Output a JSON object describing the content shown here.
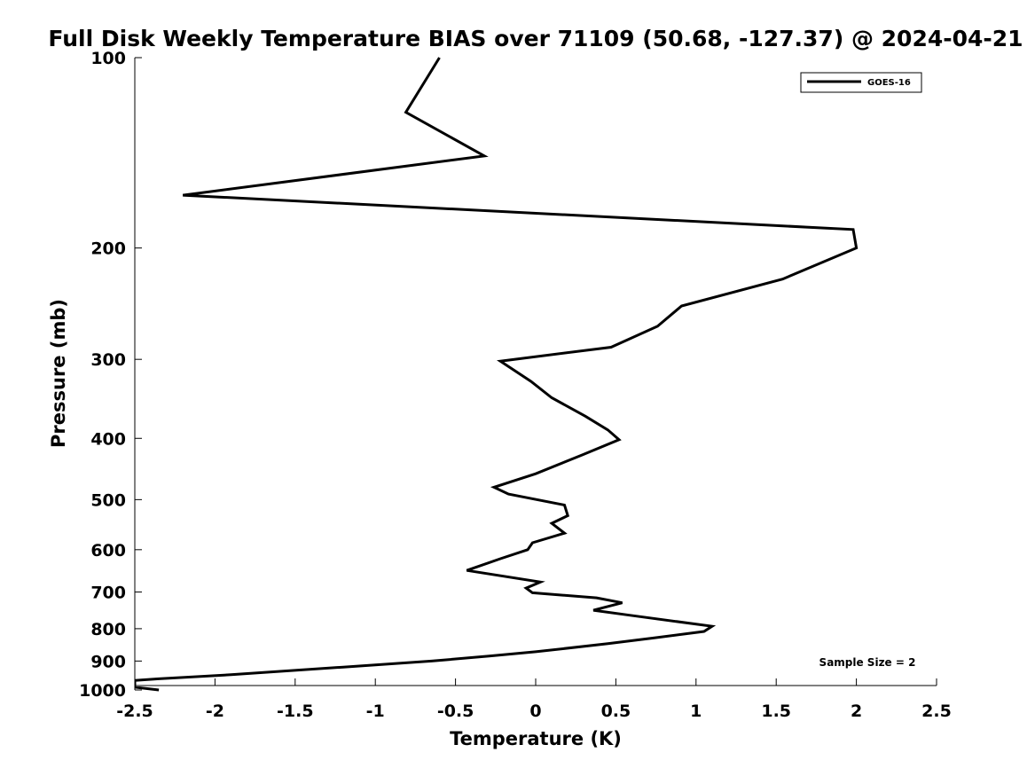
{
  "chart_data": {
    "type": "line",
    "title": "Full Disk Weekly Temperature BIAS over 71109 (50.68, -127.37) @ 2024-04-21",
    "xlabel": "Temperature (K)",
    "ylabel": "Pressure (mb)",
    "xlim": [
      -2.5,
      2.5
    ],
    "ylim": [
      1000,
      100
    ],
    "y_scale": "log",
    "x_ticks": [
      -2.5,
      -2,
      -1.5,
      -1,
      -0.5,
      0,
      0.5,
      1,
      1.5,
      2,
      2.5
    ],
    "x_tick_labels": [
      "-2.5",
      "-2",
      "-1.5",
      "-1",
      "-0.5",
      "0",
      "0.5",
      "1",
      "1.5",
      "2",
      "2.5"
    ],
    "y_ticks": [
      100,
      200,
      300,
      400,
      500,
      600,
      700,
      800,
      900,
      1000
    ],
    "y_tick_labels": [
      "100",
      "200",
      "300",
      "400",
      "500",
      "600",
      "700",
      "800",
      "900",
      "1000"
    ],
    "grid": false,
    "legend_position": "top-right",
    "annotation": "Sample Size = 2",
    "series": [
      {
        "name": "GOES-16",
        "color": "#000000",
        "points": [
          {
            "x": -0.6,
            "p": 100
          },
          {
            "x": -0.81,
            "p": 122
          },
          {
            "x": -0.32,
            "p": 143
          },
          {
            "x": -2.2,
            "p": 165
          },
          {
            "x": 1.98,
            "p": 187
          },
          {
            "x": 2.0,
            "p": 200
          },
          {
            "x": 1.54,
            "p": 224
          },
          {
            "x": 0.91,
            "p": 247
          },
          {
            "x": 0.76,
            "p": 266
          },
          {
            "x": 0.47,
            "p": 287
          },
          {
            "x": -0.22,
            "p": 302
          },
          {
            "x": -0.03,
            "p": 325
          },
          {
            "x": 0.1,
            "p": 345
          },
          {
            "x": 0.31,
            "p": 369
          },
          {
            "x": 0.45,
            "p": 388
          },
          {
            "x": 0.52,
            "p": 402
          },
          {
            "x": 0.29,
            "p": 425
          },
          {
            "x": 0.0,
            "p": 455
          },
          {
            "x": -0.26,
            "p": 478
          },
          {
            "x": -0.17,
            "p": 490
          },
          {
            "x": 0.18,
            "p": 510
          },
          {
            "x": 0.2,
            "p": 530
          },
          {
            "x": 0.1,
            "p": 545
          },
          {
            "x": 0.18,
            "p": 565
          },
          {
            "x": -0.02,
            "p": 585
          },
          {
            "x": -0.05,
            "p": 600
          },
          {
            "x": -0.22,
            "p": 620
          },
          {
            "x": -0.43,
            "p": 647
          },
          {
            "x": 0.03,
            "p": 675
          },
          {
            "x": -0.06,
            "p": 690
          },
          {
            "x": -0.02,
            "p": 702
          },
          {
            "x": 0.38,
            "p": 715
          },
          {
            "x": 0.54,
            "p": 728
          },
          {
            "x": 0.36,
            "p": 748
          },
          {
            "x": 0.59,
            "p": 762
          },
          {
            "x": 1.1,
            "p": 793
          },
          {
            "x": 1.05,
            "p": 808
          },
          {
            "x": 0.74,
            "p": 827
          },
          {
            "x": 0.45,
            "p": 845
          },
          {
            "x": 0.0,
            "p": 870
          },
          {
            "x": -0.29,
            "p": 884
          },
          {
            "x": -0.65,
            "p": 900
          },
          {
            "x": -1.2,
            "p": 920
          },
          {
            "x": -1.9,
            "p": 946
          },
          {
            "x": -2.35,
            "p": 960
          },
          {
            "x": -2.5,
            "p": 966
          },
          {
            "x": -2.5,
            "p": 990
          },
          {
            "x": -2.35,
            "p": 1000
          }
        ]
      }
    ]
  }
}
